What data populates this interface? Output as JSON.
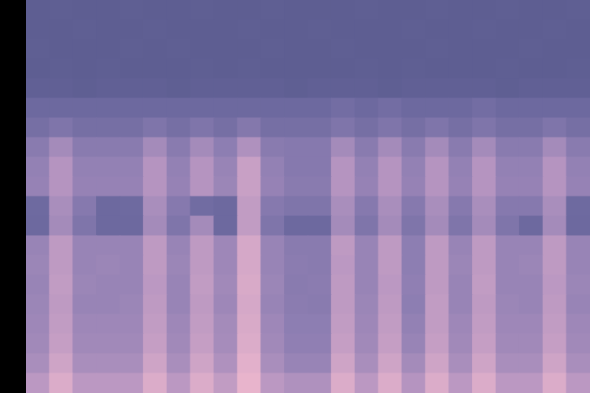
{
  "chart_data": {
    "type": "heatmap",
    "tick_labels": false,
    "cells": [
      [
        34,
        35,
        34,
        34,
        35,
        34,
        34,
        35,
        34,
        34,
        35,
        34,
        34,
        34,
        35,
        34,
        34,
        35,
        34,
        34,
        35,
        34,
        34,
        35
      ],
      [
        34,
        34,
        35,
        34,
        34,
        35,
        34,
        34,
        34,
        35,
        34,
        34,
        35,
        34,
        34,
        34,
        35,
        34,
        34,
        35,
        34,
        34,
        35,
        34
      ],
      [
        35,
        34,
        34,
        34,
        35,
        34,
        35,
        34,
        34,
        34,
        35,
        34,
        34,
        35,
        34,
        34,
        34,
        35,
        34,
        34,
        34,
        35,
        34,
        34
      ],
      [
        34,
        35,
        34,
        35,
        34,
        34,
        34,
        35,
        34,
        35,
        34,
        34,
        34,
        34,
        35,
        34,
        35,
        34,
        34,
        34,
        35,
        34,
        34,
        35
      ],
      [
        36,
        36,
        35,
        36,
        36,
        36,
        35,
        36,
        36,
        36,
        36,
        35,
        36,
        36,
        36,
        35,
        36,
        36,
        36,
        36,
        35,
        36,
        36,
        36
      ],
      [
        44,
        44,
        44,
        44,
        44,
        44,
        44,
        44,
        44,
        44,
        44,
        44,
        44,
        47,
        44,
        47,
        44,
        44,
        44,
        47,
        44,
        44,
        44,
        44
      ],
      [
        48,
        52,
        48,
        48,
        48,
        52,
        48,
        52,
        48,
        54,
        48,
        48,
        48,
        52,
        48,
        52,
        48,
        52,
        48,
        52,
        48,
        48,
        52,
        48
      ],
      [
        56,
        66,
        56,
        56,
        56,
        66,
        56,
        66,
        58,
        70,
        56,
        55,
        55,
        66,
        56,
        66,
        56,
        66,
        56,
        66,
        56,
        56,
        66,
        56
      ],
      [
        60,
        72,
        60,
        60,
        60,
        72,
        60,
        72,
        62,
        78,
        60,
        55,
        55,
        72,
        60,
        72,
        60,
        72,
        60,
        72,
        60,
        60,
        72,
        60
      ],
      [
        61,
        72,
        61,
        61,
        61,
        72,
        61,
        72,
        63,
        78,
        61,
        56,
        56,
        72,
        61,
        72,
        61,
        72,
        61,
        72,
        61,
        61,
        72,
        61
      ],
      [
        45,
        68,
        55,
        44,
        45,
        68,
        55,
        46,
        44,
        76,
        55,
        52,
        52,
        68,
        55,
        68,
        55,
        68,
        55,
        68,
        55,
        55,
        68,
        45
      ],
      [
        44,
        66,
        52,
        44,
        44,
        66,
        52,
        66,
        44,
        76,
        52,
        44,
        44,
        66,
        52,
        66,
        52,
        66,
        52,
        66,
        52,
        44,
        66,
        44
      ],
      [
        62,
        75,
        62,
        62,
        62,
        75,
        62,
        75,
        64,
        82,
        62,
        56,
        56,
        75,
        62,
        75,
        58,
        75,
        62,
        75,
        62,
        62,
        75,
        62
      ],
      [
        63,
        75,
        62,
        63,
        62,
        75,
        63,
        75,
        64,
        82,
        62,
        57,
        56,
        74,
        62,
        75,
        58,
        75,
        63,
        75,
        62,
        63,
        75,
        62
      ],
      [
        62,
        76,
        63,
        62,
        62,
        74,
        62,
        76,
        65,
        83,
        63,
        56,
        57,
        75,
        62,
        74,
        59,
        75,
        62,
        76,
        62,
        62,
        74,
        63
      ],
      [
        63,
        75,
        62,
        62,
        63,
        75,
        62,
        75,
        64,
        82,
        62,
        57,
        56,
        75,
        63,
        75,
        58,
        76,
        62,
        75,
        63,
        62,
        75,
        62
      ],
      [
        64,
        76,
        64,
        64,
        64,
        76,
        64,
        76,
        66,
        83,
        64,
        58,
        58,
        76,
        64,
        76,
        60,
        76,
        64,
        76,
        64,
        64,
        76,
        64
      ],
      [
        65,
        77,
        65,
        65,
        65,
        77,
        65,
        77,
        67,
        84,
        65,
        59,
        59,
        77,
        65,
        77,
        62,
        77,
        65,
        77,
        65,
        65,
        77,
        65
      ],
      [
        68,
        80,
        68,
        68,
        68,
        80,
        68,
        80,
        70,
        86,
        68,
        62,
        62,
        80,
        68,
        80,
        66,
        80,
        68,
        80,
        68,
        68,
        80,
        68
      ],
      [
        74,
        84,
        74,
        74,
        74,
        84,
        74,
        84,
        76,
        88,
        74,
        70,
        70,
        84,
        74,
        84,
        72,
        84,
        74,
        84,
        74,
        74,
        84,
        74
      ]
    ]
  }
}
